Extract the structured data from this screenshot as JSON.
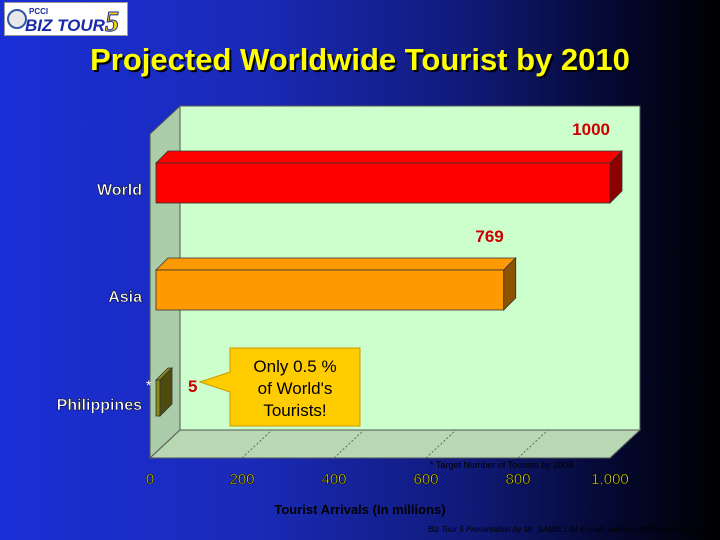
{
  "header": {
    "title": "Projected Worldwide Tourist by 2010",
    "logo_text": {
      "small": "PCCI",
      "main": "BIZ TOUR",
      "number": "5"
    }
  },
  "chart_data": {
    "type": "bar",
    "orientation": "horizontal",
    "categories": [
      "World",
      "Asia",
      "Philippines"
    ],
    "values": [
      1000,
      769,
      5
    ],
    "value_labels": [
      "1000",
      "769",
      "5"
    ],
    "bar_colors": [
      "#ff0000",
      "#ff9900",
      "#8a8a1a"
    ],
    "category_marker": [
      "",
      "",
      "*"
    ],
    "xlabel": "Tourist Arrivals (In millions)",
    "ylabel": "",
    "xlim": [
      0,
      1000
    ],
    "xticks": [
      "0",
      "200",
      "400",
      "600",
      "800",
      "1,000"
    ],
    "plot_background": "#ccffcc",
    "callout": [
      "Only 0.5 %",
      "of World's",
      "Tourists!"
    ],
    "callout_color": "#ffcc00",
    "footnote": "* Target Number of Tourists by 2008"
  },
  "footer": {
    "credit": "Biz Tour 5 Presentation by Mr. SAMIE LIM E-mail: samielim@blimsfurniture.com"
  }
}
